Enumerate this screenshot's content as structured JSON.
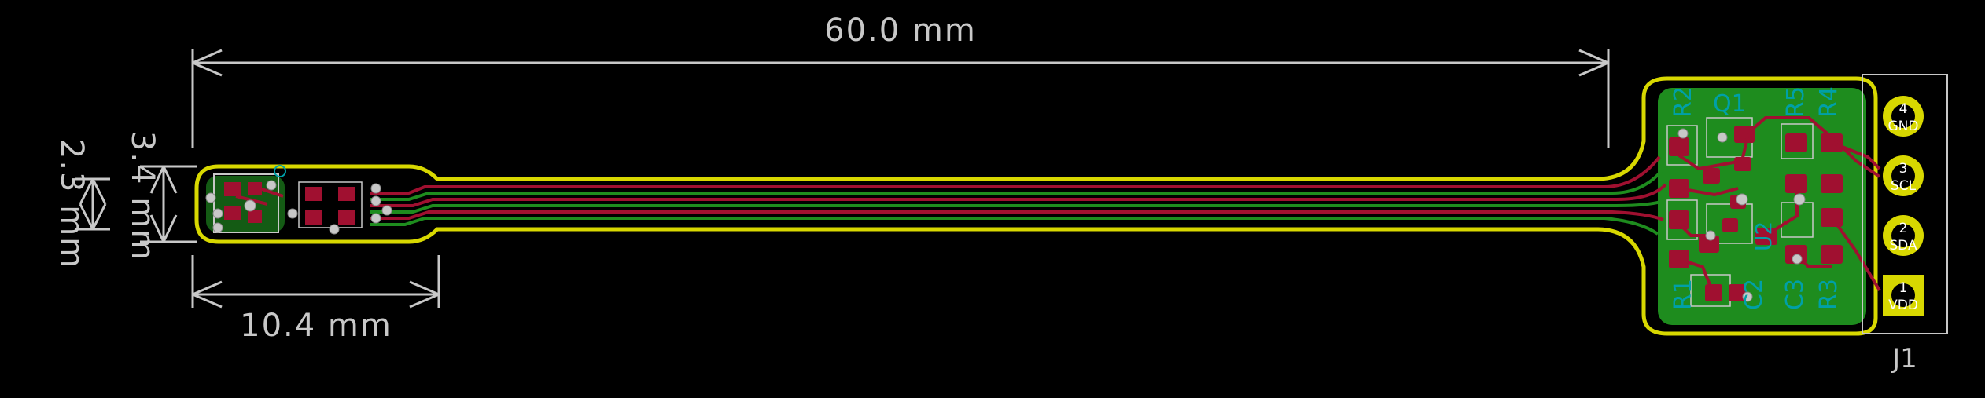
{
  "dimensions": {
    "length": "60.0 mm",
    "tip_width": "10.4 mm",
    "outer_height": "3.4 mm",
    "inner_height": "2.3 mm"
  },
  "connector": {
    "ref": "J1",
    "pins": [
      {
        "num": "4",
        "label": "GND"
      },
      {
        "num": "3",
        "label": "SCL"
      },
      {
        "num": "2",
        "label": "SDA"
      },
      {
        "num": "1",
        "label": "VDD"
      }
    ]
  },
  "components": [
    "R2",
    "Q1",
    "R5",
    "R4",
    "U2",
    "R1",
    "C2",
    "C3",
    "R3"
  ],
  "colors": {
    "background": "#000000",
    "board_edge": "#d8d800",
    "board_fill": "#1e8c1e",
    "copper": "#a01030",
    "silkscreen": "#c8c8c8",
    "reference": "#00a0a8"
  }
}
